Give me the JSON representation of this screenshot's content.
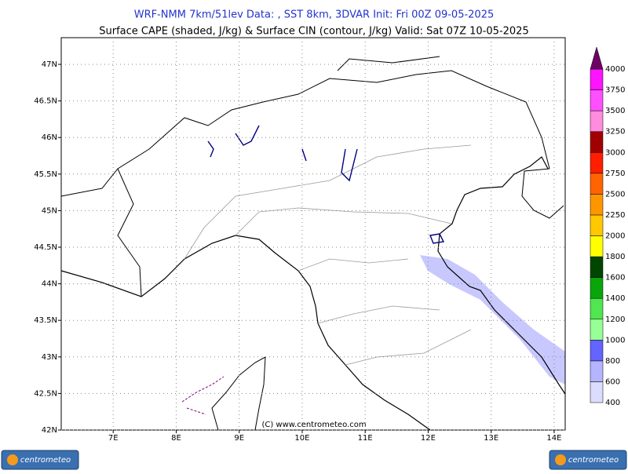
{
  "header": {
    "line1": "WRF-NMM 7km/51lev   Data: , SST 8km, 3DVAR   Init: Fri 00Z 09-05-2025",
    "line2": "Surface CAPE (shaded, J/kg) & Surface CIN (contour, J/kg)  Valid: Sat 07Z 10-05-2025"
  },
  "map": {
    "lonlim": [
      6.175,
      14.175
    ],
    "latlim": [
      42,
      47.365
    ],
    "lon_ticks": [
      {
        "value": 7,
        "label": "7E"
      },
      {
        "value": 8,
        "label": "8E"
      },
      {
        "value": 9,
        "label": "9E"
      },
      {
        "value": 10,
        "label": "10E"
      },
      {
        "value": 11,
        "label": "11E"
      },
      {
        "value": 12,
        "label": "12E"
      },
      {
        "value": 13,
        "label": "13E"
      },
      {
        "value": 14,
        "label": "14E"
      }
    ],
    "lat_ticks": [
      {
        "value": 42,
        "label": "42N"
      },
      {
        "value": 42.5,
        "label": "42.5N"
      },
      {
        "value": 43,
        "label": "43N"
      },
      {
        "value": 43.5,
        "label": "43.5N"
      },
      {
        "value": 44,
        "label": "44N"
      },
      {
        "value": 44.5,
        "label": "44.5N"
      },
      {
        "value": 45,
        "label": "45N"
      },
      {
        "value": 45.5,
        "label": "45.5N"
      },
      {
        "value": 46,
        "label": "46N"
      },
      {
        "value": 46.5,
        "label": "46.5N"
      },
      {
        "value": 47,
        "label": "47N"
      }
    ],
    "copyright": "(C) www.centrometeo.com"
  },
  "colorbar": {
    "levels": [
      400,
      600,
      800,
      1000,
      1200,
      1400,
      1600,
      1800,
      2000,
      2250,
      2500,
      2750,
      3000,
      3250,
      3500,
      3750,
      4000
    ],
    "colors": [
      "#dcdcff",
      "#b4b4ff",
      "#6464ff",
      "#96ff96",
      "#50e650",
      "#0aa50a",
      "#004600",
      "#ffff00",
      "#ffc800",
      "#ff9600",
      "#ff6400",
      "#ff1e00",
      "#a00000",
      "#ff8cdc",
      "#ff50ff",
      "#ff14ff",
      "#6e0064"
    ]
  },
  "logo": {
    "text": "centrometeo"
  }
}
